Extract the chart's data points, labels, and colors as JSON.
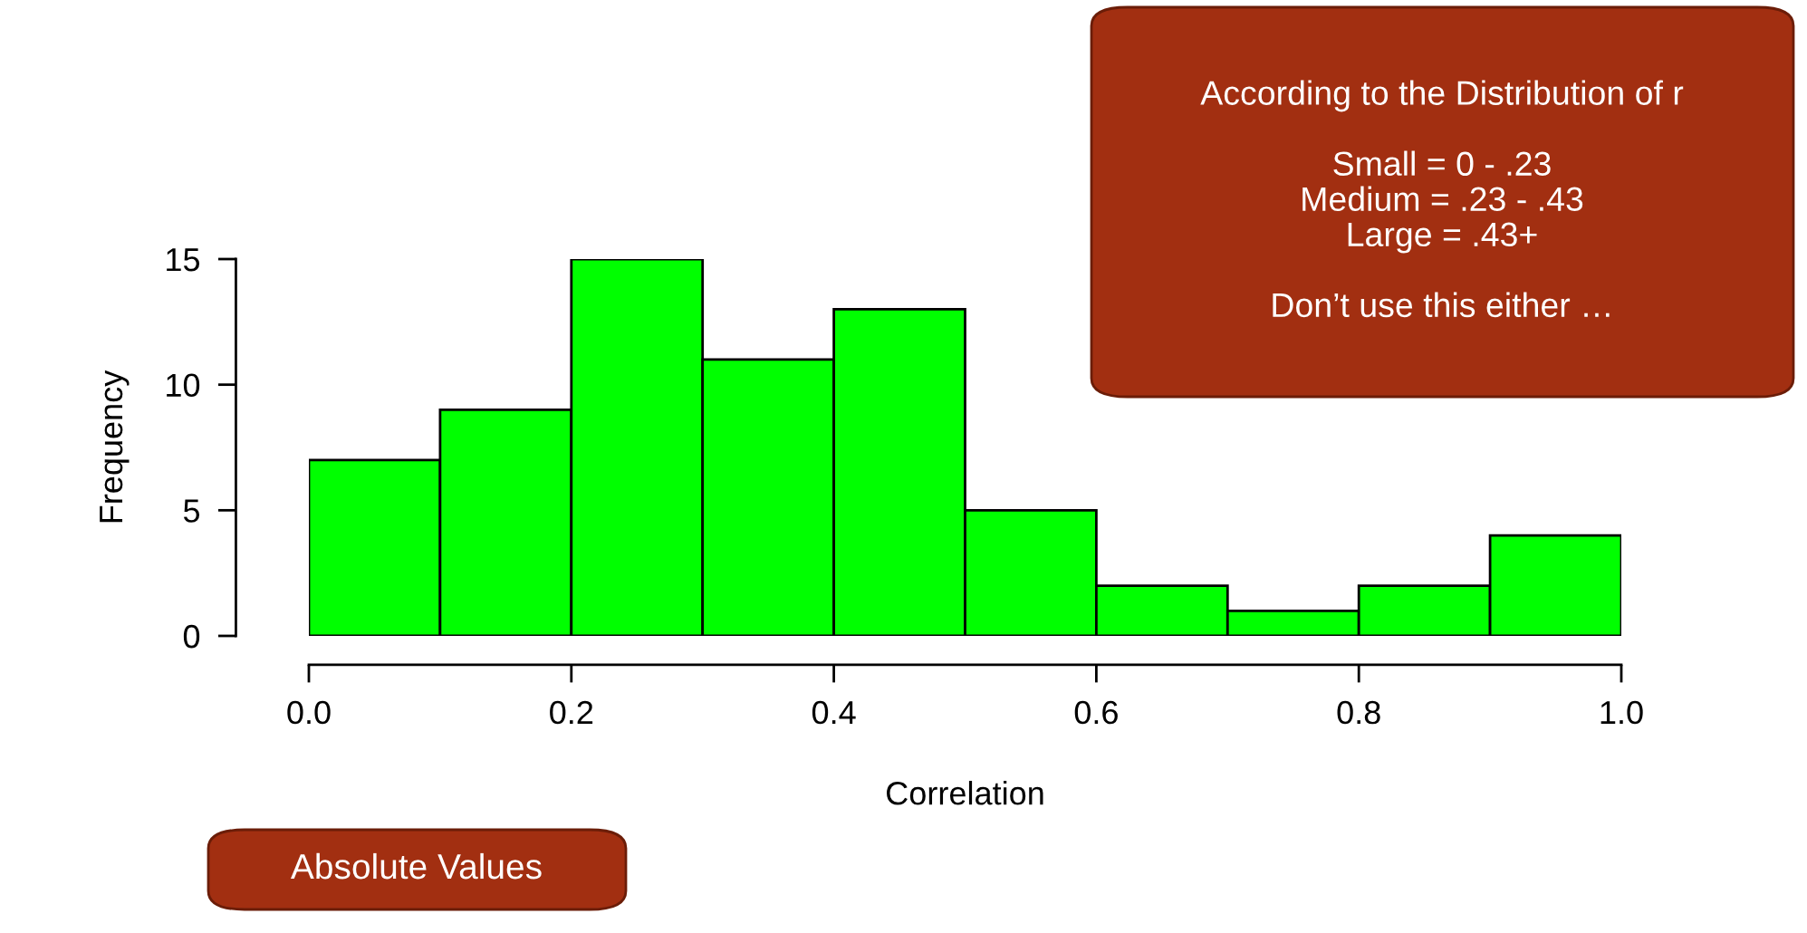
{
  "chart_data": {
    "type": "histogram",
    "xlabel": "Correlation",
    "ylabel": "Frequency",
    "bins": [
      0.0,
      0.1,
      0.2,
      0.3,
      0.4,
      0.5,
      0.6,
      0.7,
      0.8,
      0.9,
      1.0
    ],
    "values": [
      7,
      9,
      15,
      11,
      13,
      5,
      2,
      1,
      2,
      4
    ],
    "color": "#00ff00",
    "xlim": [
      0,
      1
    ],
    "xticks": [
      {
        "value": 0,
        "label": "0.0"
      },
      0.2,
      0.4,
      0.6,
      0.8,
      {
        "value": 1,
        "label": "1.0"
      }
    ],
    "ylim": [
      0,
      15
    ],
    "yticks": [
      0,
      5,
      10,
      15
    ],
    "grid": false,
    "legend": false,
    "annotations": [
      "According to the Distribution of r\n\nSmall = 0 - .23\nMedium = .23 - .43\nLarge = .43+\n\nDon’t use this either …",
      "Absolute Values"
    ]
  }
}
